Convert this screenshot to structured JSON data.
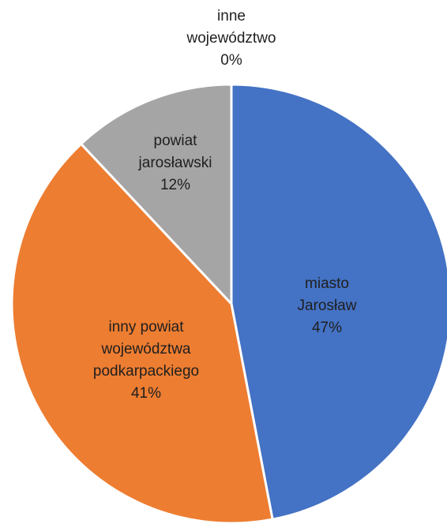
{
  "chart_data": {
    "type": "pie",
    "title": "",
    "start_angle_deg": 0,
    "direction": "clockwise",
    "slices": [
      {
        "lines": [
          "miasto",
          "Jarosław"
        ],
        "percent_label": "47%",
        "value": 47,
        "color": "#4472C4",
        "label_color": "#1f1f1f"
      },
      {
        "lines": [
          "inny powiat",
          "województwa",
          "podkarpackiego"
        ],
        "percent_label": "41%",
        "value": 41,
        "color": "#ED7D31",
        "label_color": "#1f1f1f"
      },
      {
        "lines": [
          "powiat",
          "jarosławski"
        ],
        "percent_label": "12%",
        "value": 12,
        "color": "#A5A5A5",
        "label_color": "#1f1f1f"
      },
      {
        "lines": [
          "inne",
          "województwo"
        ],
        "percent_label": "0%",
        "value": 0,
        "color": "#FFC000",
        "label_color": "#1f1f1f"
      }
    ]
  }
}
